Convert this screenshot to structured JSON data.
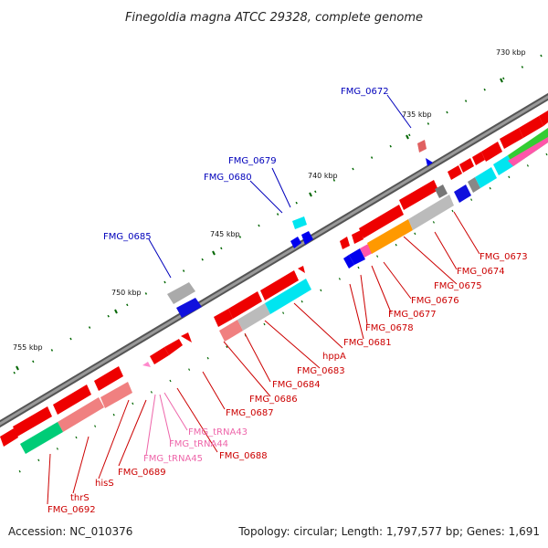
{
  "title": "Finegoldia magna ATCC 29328, complete genome",
  "accession": "Accession: NC_010376",
  "topology": "Topology: circular; Length: 1,797,577 bp; Genes: 1,691",
  "scale_ticks": [
    "730 kbp",
    "735 kbp",
    "740 kbp",
    "745 kbp",
    "750 kbp",
    "755 kbp"
  ],
  "upper_labels": [
    "FMG_0672",
    "FMG_0679",
    "FMG_0680",
    "FMG_0685"
  ],
  "lower_labels": [
    "FMG_0673",
    "FMG_0674",
    "FMG_0675",
    "FMG_0676",
    "FMG_0677",
    "FMG_0678",
    "FMG_0681",
    "hppA",
    "FMG_0683",
    "FMG_0684",
    "FMG_0686",
    "FMG_0687",
    "FMG_0688",
    "FMG_tRNA43",
    "FMG_tRNA44",
    "FMG_tRNA45",
    "FMG_0689",
    "hisS",
    "thrS",
    "FMG_0692"
  ],
  "colors": {
    "upper_label": "#0000bb",
    "lower_label": "#cc0000",
    "trna_label": "#ee66aa",
    "backbone": "#777777",
    "cds": "#ee0000",
    "tick": "#006600"
  }
}
